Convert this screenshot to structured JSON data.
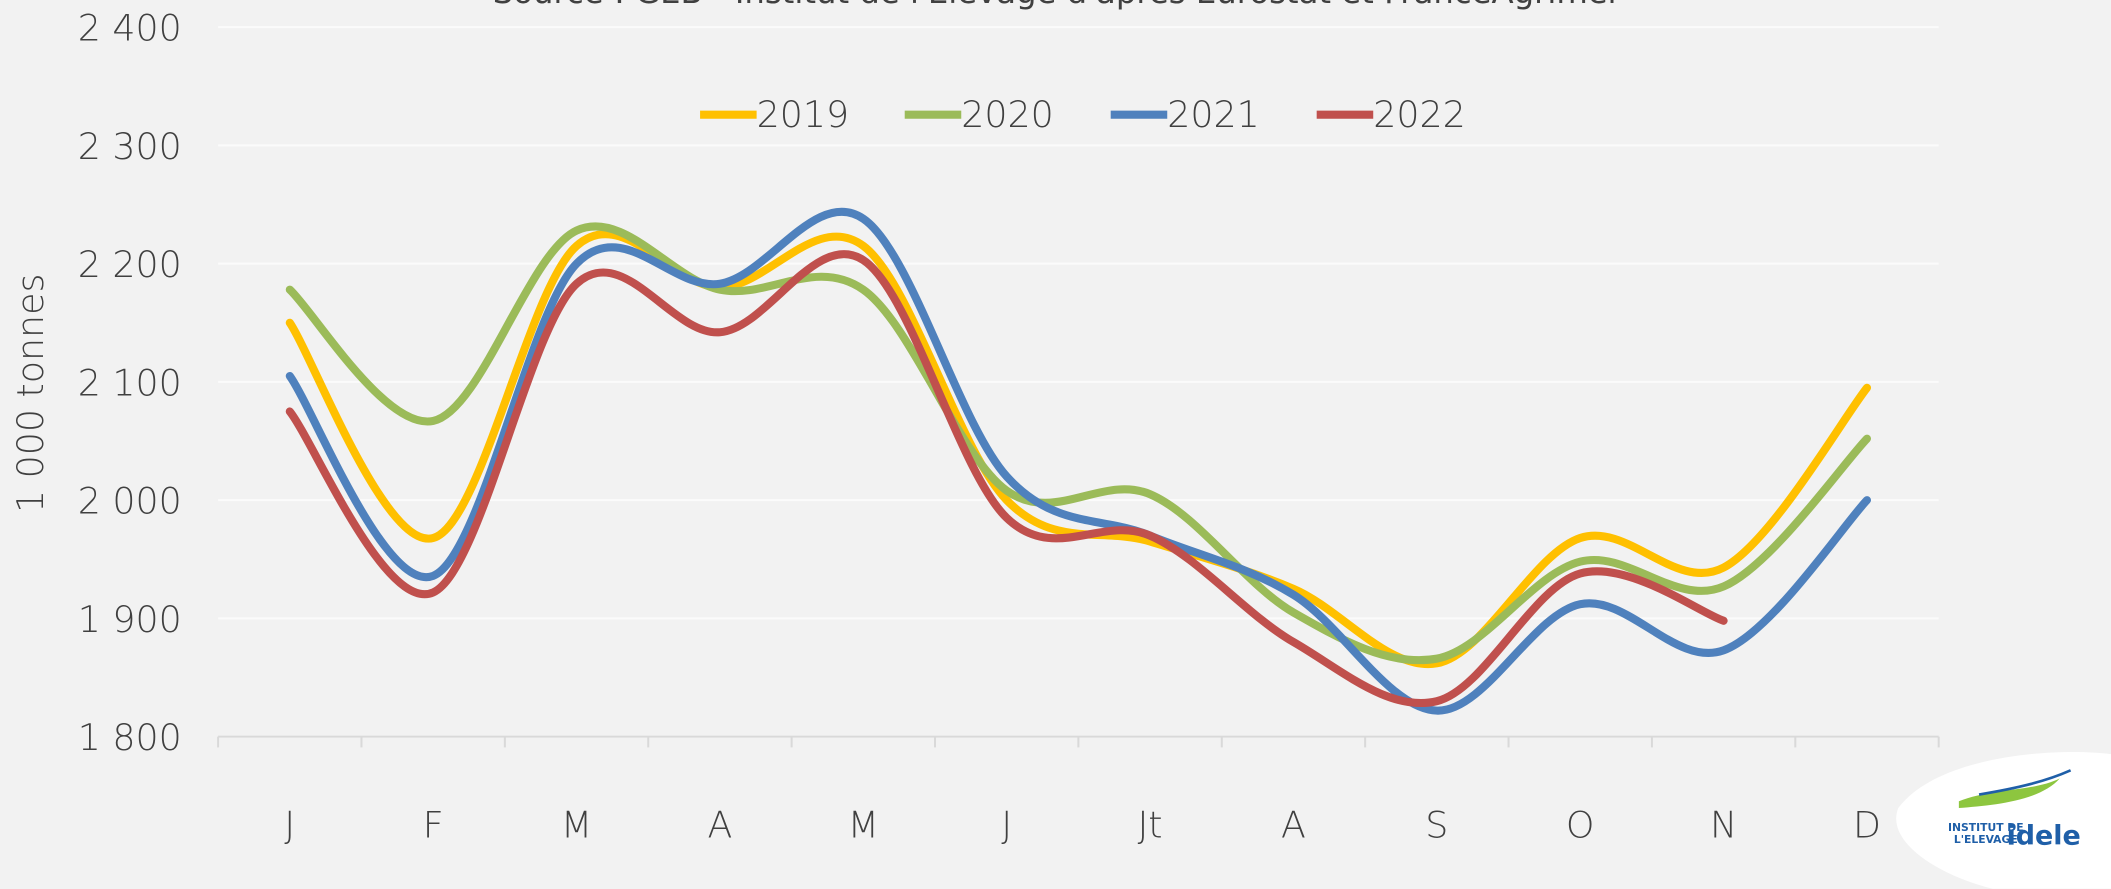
{
  "chart_data": {
    "type": "line",
    "subtitle": "Source : GEB - Institut de l'Elevage d'après Eurostat et FranceAgrimer",
    "y_label": "1 000 tonnes",
    "categories": [
      "J",
      "F",
      "M",
      "A",
      "M",
      "J",
      "Jt",
      "A",
      "S",
      "O",
      "N",
      "D"
    ],
    "series": [
      {
        "name": "2019",
        "color": "#ffc000",
        "values": [
          2150,
          1968,
          2215,
          2180,
          2215,
          2000,
          1965,
          1925,
          1862,
          1968,
          1943,
          2095
        ]
      },
      {
        "name": "2020",
        "color": "#9bbb59",
        "values": [
          2178,
          2067,
          2228,
          2178,
          2178,
          2008,
          2005,
          1905,
          1866,
          1948,
          1927,
          2052
        ]
      },
      {
        "name": "2021",
        "color": "#4f81bd",
        "values": [
          2105,
          1936,
          2200,
          2183,
          2238,
          2020,
          1970,
          1920,
          1822,
          1912,
          1873,
          2000
        ]
      },
      {
        "name": "2022",
        "color": "#c0504d",
        "values": [
          2075,
          1922,
          2183,
          2142,
          2203,
          1985,
          1970,
          1880,
          1830,
          1938,
          1898,
          null
        ]
      }
    ],
    "ylim": [
      1800,
      2400
    ],
    "yticks": [
      {
        "value": 1800,
        "label": "1 800"
      },
      {
        "value": 1900,
        "label": "1 900"
      },
      {
        "value": 2000,
        "label": "2 000"
      },
      {
        "value": 2100,
        "label": "2 100"
      },
      {
        "value": 2200,
        "label": "2 200"
      },
      {
        "value": 2300,
        "label": "2 300"
      },
      {
        "value": 2400,
        "label": "2 400"
      }
    ],
    "grid": true,
    "legend": "top",
    "logo": {
      "line1": "INSTITUT DE",
      "line2": "L'ELEVAGE",
      "brand": "idele"
    }
  }
}
